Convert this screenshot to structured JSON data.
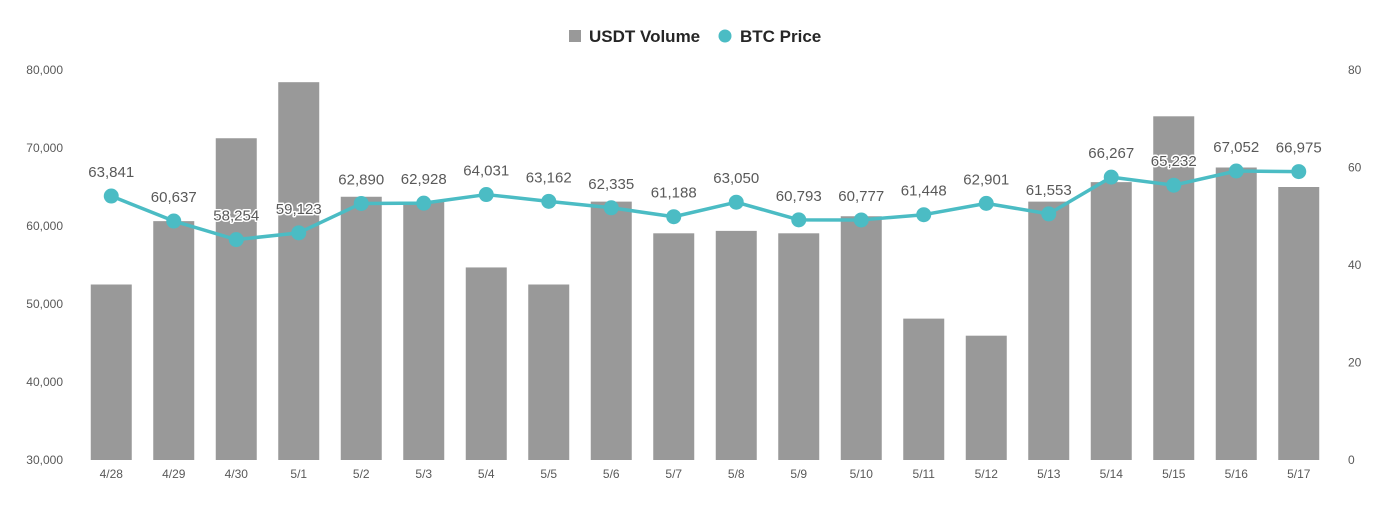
{
  "chart_data": {
    "type": "bar",
    "categories": [
      "4/28",
      "4/29",
      "4/30",
      "5/1",
      "5/2",
      "5/3",
      "5/4",
      "5/5",
      "5/6",
      "5/7",
      "5/8",
      "5/9",
      "5/10",
      "5/11",
      "5/12",
      "5/13",
      "5/14",
      "5/15",
      "5/16",
      "5/17"
    ],
    "series": [
      {
        "name": "USDT Volume",
        "type": "bar",
        "axis": "right",
        "color": "#999999",
        "values": [
          36,
          49,
          66,
          77.5,
          54,
          53,
          39.5,
          36,
          53,
          46.5,
          47,
          46.5,
          50,
          29,
          25.5,
          53,
          57,
          70.5,
          60,
          56
        ]
      },
      {
        "name": "BTC Price",
        "type": "line",
        "axis": "left",
        "color": "#4BBCC4",
        "values": [
          63841,
          60637,
          58254,
          59123,
          62890,
          62928,
          64031,
          63162,
          62335,
          61188,
          63050,
          60793,
          60777,
          61448,
          62901,
          61553,
          66267,
          65232,
          67052,
          66975
        ],
        "labels": [
          "63,841",
          "60,637",
          "58,254",
          "59,123",
          "62,890",
          "62,928",
          "64,031",
          "63,162",
          "62,335",
          "61,188",
          "63,050",
          "60,793",
          "60,777",
          "61,448",
          "62,901",
          "61,553",
          "66,267",
          "65,232",
          "67,052",
          "66,975"
        ]
      }
    ],
    "left_axis": {
      "ylim": [
        30000,
        80000
      ],
      "ticks": [
        "30,000",
        "40,000",
        "50,000",
        "60,000",
        "70,000",
        "80,000"
      ]
    },
    "right_axis": {
      "ylim": [
        0,
        80
      ],
      "ticks": [
        "0",
        "20",
        "40",
        "60",
        "80"
      ]
    },
    "legend": {
      "position": "top-center",
      "items": [
        "USDT Volume",
        "BTC Price"
      ]
    },
    "grid": false
  }
}
